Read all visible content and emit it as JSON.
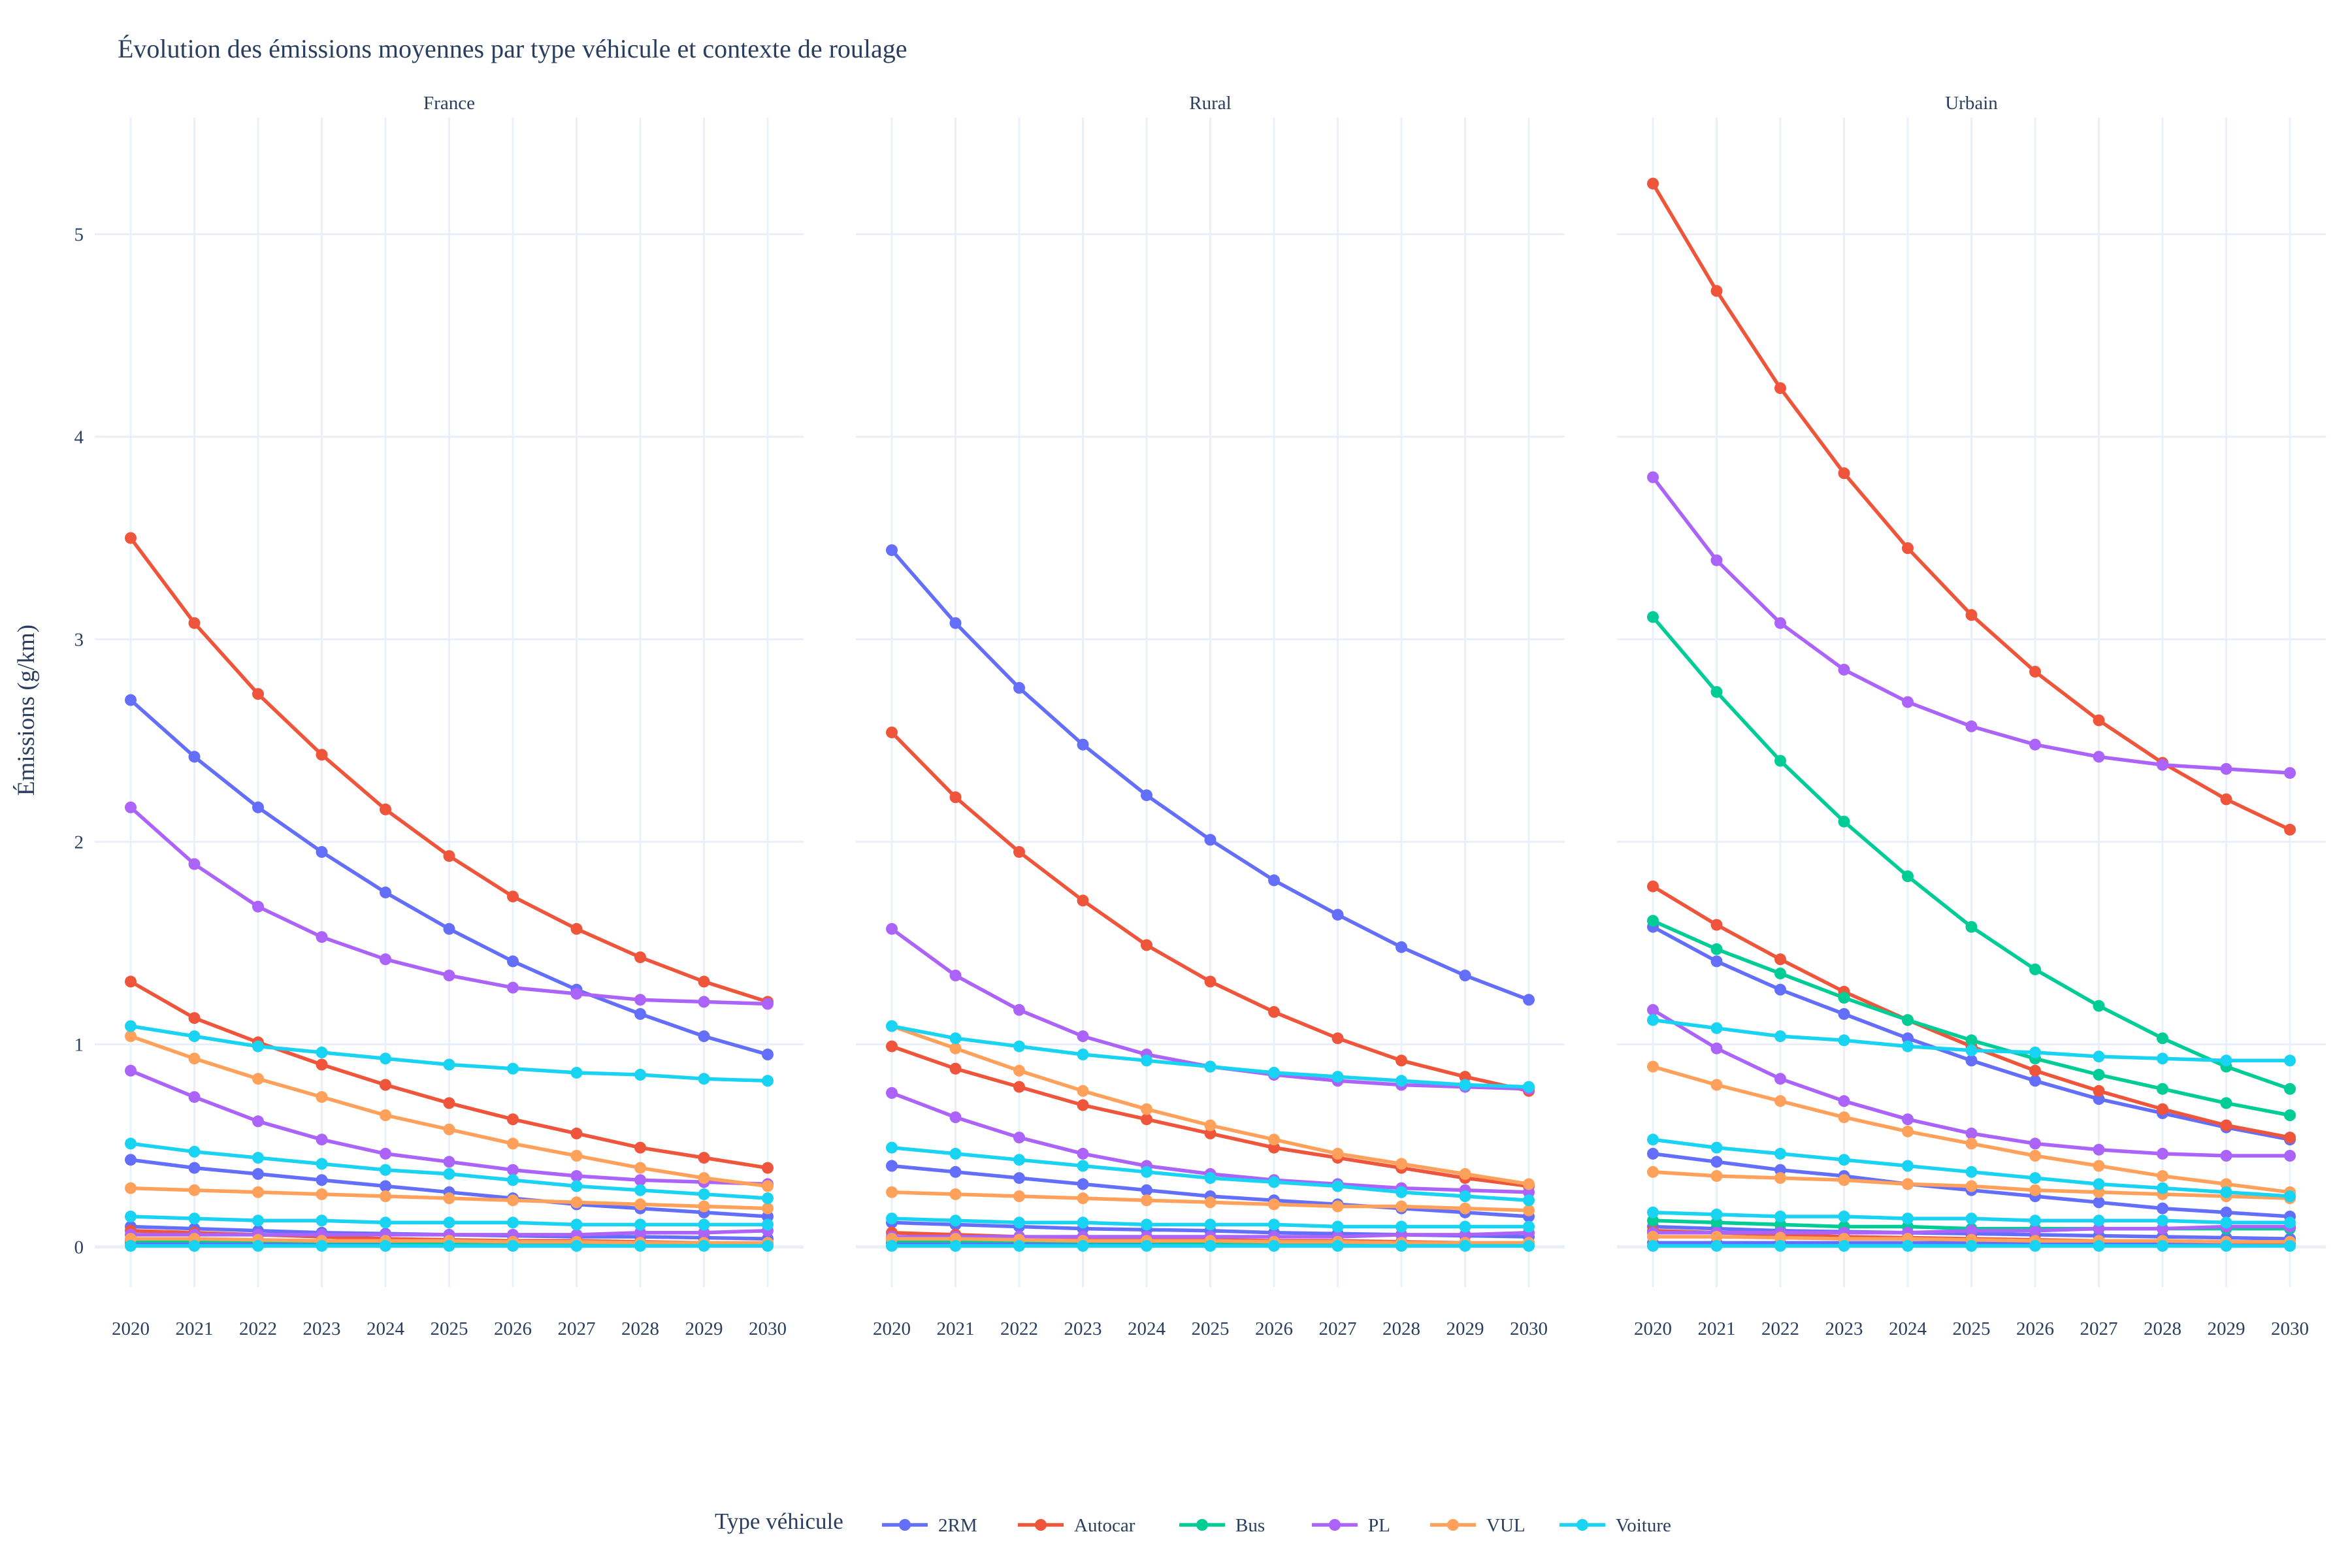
{
  "chart_data": {
    "type": "line",
    "title": "Évolution des émissions moyennes par type véhicule et contexte de roulage",
    "xlabel": "",
    "ylabel": "Émissions (g/km)",
    "ylim": [
      -0.3,
      5.6
    ],
    "yticks": [
      0,
      1,
      2,
      3,
      4,
      5
    ],
    "x": [
      "2020",
      "2021",
      "2022",
      "2023",
      "2024",
      "2025",
      "2026",
      "2027",
      "2028",
      "2029",
      "2030"
    ],
    "grid": true,
    "legend": {
      "title": "Type véhicule",
      "placement": "bottom-center"
    },
    "series_colors": {
      "2RM": "#636efa",
      "Autocar": "#ef553b",
      "Bus": "#00cc96",
      "PL": "#ab63fa",
      "VUL": "#ffa15a",
      "Voiture": "#19d3f3"
    },
    "facets": [
      {
        "name": "France",
        "series": [
          {
            "name": "2RM",
            "values": [
              2.7,
              2.42,
              2.17,
              1.95,
              1.75,
              1.57,
              1.41,
              1.27,
              1.15,
              1.04,
              0.95
            ]
          },
          {
            "name": "2RM",
            "values": [
              0.43,
              0.39,
              0.36,
              0.33,
              0.3,
              0.27,
              0.24,
              0.21,
              0.19,
              0.17,
              0.15
            ]
          },
          {
            "name": "2RM",
            "values": [
              0.1,
              0.09,
              0.08,
              0.07,
              0.065,
              0.06,
              0.055,
              0.05,
              0.05,
              0.045,
              0.04
            ]
          },
          {
            "name": "2RM",
            "values": [
              0.02,
              0.02,
              0.02,
              0.02,
              0.02,
              0.02,
              0.02,
              0.02,
              0.02,
              0.02,
              0.02
            ]
          },
          {
            "name": "Autocar",
            "values": [
              3.5,
              3.08,
              2.73,
              2.43,
              2.16,
              1.93,
              1.73,
              1.57,
              1.43,
              1.31,
              1.21
            ]
          },
          {
            "name": "Autocar",
            "values": [
              1.31,
              1.13,
              1.01,
              0.9,
              0.8,
              0.71,
              0.63,
              0.56,
              0.49,
              0.44,
              0.39
            ]
          },
          {
            "name": "Autocar",
            "values": [
              0.08,
              0.07,
              0.06,
              0.05,
              0.04,
              0.035,
              0.03,
              0.03,
              0.025,
              0.02,
              0.02
            ]
          },
          {
            "name": "Bus",
            "values": [
              0.03,
              0.03,
              0.03,
              0.025,
              0.025,
              0.02,
              0.02,
              0.02,
              0.02,
              0.02,
              0.02
            ]
          },
          {
            "name": "PL",
            "values": [
              2.17,
              1.89,
              1.68,
              1.53,
              1.42,
              1.34,
              1.28,
              1.25,
              1.22,
              1.21,
              1.2
            ]
          },
          {
            "name": "PL",
            "values": [
              0.87,
              0.74,
              0.62,
              0.53,
              0.46,
              0.42,
              0.38,
              0.35,
              0.33,
              0.32,
              0.31
            ]
          },
          {
            "name": "PL",
            "values": [
              0.06,
              0.06,
              0.06,
              0.06,
              0.06,
              0.06,
              0.06,
              0.06,
              0.07,
              0.07,
              0.08
            ]
          },
          {
            "name": "VUL",
            "values": [
              1.04,
              0.93,
              0.83,
              0.74,
              0.65,
              0.58,
              0.51,
              0.45,
              0.39,
              0.34,
              0.3
            ]
          },
          {
            "name": "VUL",
            "values": [
              0.29,
              0.28,
              0.27,
              0.26,
              0.25,
              0.24,
              0.23,
              0.22,
              0.21,
              0.2,
              0.19
            ]
          },
          {
            "name": "VUL",
            "values": [
              0.04,
              0.04,
              0.035,
              0.03,
              0.03,
              0.03,
              0.025,
              0.025,
              0.02,
              0.02,
              0.02
            ]
          },
          {
            "name": "Voiture",
            "values": [
              1.09,
              1.04,
              0.99,
              0.96,
              0.93,
              0.9,
              0.88,
              0.86,
              0.85,
              0.83,
              0.82
            ]
          },
          {
            "name": "Voiture",
            "values": [
              0.51,
              0.47,
              0.44,
              0.41,
              0.38,
              0.36,
              0.33,
              0.3,
              0.28,
              0.26,
              0.24
            ]
          },
          {
            "name": "Voiture",
            "values": [
              0.15,
              0.14,
              0.13,
              0.13,
              0.12,
              0.12,
              0.12,
              0.11,
              0.11,
              0.11,
              0.11
            ]
          },
          {
            "name": "Voiture",
            "values": [
              0.005,
              0.005,
              0.005,
              0.005,
              0.005,
              0.005,
              0.005,
              0.005,
              0.005,
              0.005,
              0.005
            ]
          }
        ]
      },
      {
        "name": "Rural",
        "series": [
          {
            "name": "2RM",
            "values": [
              3.44,
              3.08,
              2.76,
              2.48,
              2.23,
              2.01,
              1.81,
              1.64,
              1.48,
              1.34,
              1.22
            ]
          },
          {
            "name": "2RM",
            "values": [
              0.4,
              0.37,
              0.34,
              0.31,
              0.28,
              0.25,
              0.23,
              0.21,
              0.19,
              0.17,
              0.15
            ]
          },
          {
            "name": "2RM",
            "values": [
              0.12,
              0.11,
              0.1,
              0.09,
              0.085,
              0.08,
              0.07,
              0.065,
              0.06,
              0.055,
              0.05
            ]
          },
          {
            "name": "2RM",
            "values": [
              0.02,
              0.02,
              0.02,
              0.02,
              0.02,
              0.02,
              0.02,
              0.02,
              0.02,
              0.02,
              0.02
            ]
          },
          {
            "name": "Autocar",
            "values": [
              2.54,
              2.22,
              1.95,
              1.71,
              1.49,
              1.31,
              1.16,
              1.03,
              0.92,
              0.84,
              0.77
            ]
          },
          {
            "name": "Autocar",
            "values": [
              0.99,
              0.88,
              0.79,
              0.7,
              0.63,
              0.56,
              0.49,
              0.44,
              0.39,
              0.34,
              0.3
            ]
          },
          {
            "name": "Autocar",
            "values": [
              0.07,
              0.06,
              0.05,
              0.045,
              0.04,
              0.035,
              0.03,
              0.03,
              0.025,
              0.02,
              0.02
            ]
          },
          {
            "name": "Bus",
            "values": [
              0.03,
              0.03,
              0.03,
              0.025,
              0.025,
              0.02,
              0.02,
              0.02,
              0.02,
              0.02,
              0.02
            ]
          },
          {
            "name": "PL",
            "values": [
              1.57,
              1.34,
              1.17,
              1.04,
              0.95,
              0.89,
              0.85,
              0.82,
              0.8,
              0.79,
              0.78
            ]
          },
          {
            "name": "PL",
            "values": [
              0.76,
              0.64,
              0.54,
              0.46,
              0.4,
              0.36,
              0.33,
              0.31,
              0.29,
              0.28,
              0.27
            ]
          },
          {
            "name": "PL",
            "values": [
              0.05,
              0.05,
              0.05,
              0.05,
              0.05,
              0.05,
              0.05,
              0.05,
              0.06,
              0.06,
              0.07
            ]
          },
          {
            "name": "VUL",
            "values": [
              1.09,
              0.98,
              0.87,
              0.77,
              0.68,
              0.6,
              0.53,
              0.46,
              0.41,
              0.36,
              0.31
            ]
          },
          {
            "name": "VUL",
            "values": [
              0.27,
              0.26,
              0.25,
              0.24,
              0.23,
              0.22,
              0.21,
              0.2,
              0.2,
              0.19,
              0.18
            ]
          },
          {
            "name": "VUL",
            "values": [
              0.04,
              0.04,
              0.035,
              0.03,
              0.03,
              0.03,
              0.025,
              0.025,
              0.02,
              0.02,
              0.02
            ]
          },
          {
            "name": "Voiture",
            "values": [
              1.09,
              1.03,
              0.99,
              0.95,
              0.92,
              0.89,
              0.86,
              0.84,
              0.82,
              0.8,
              0.79
            ]
          },
          {
            "name": "Voiture",
            "values": [
              0.49,
              0.46,
              0.43,
              0.4,
              0.37,
              0.34,
              0.32,
              0.3,
              0.27,
              0.25,
              0.23
            ]
          },
          {
            "name": "Voiture",
            "values": [
              0.14,
              0.13,
              0.12,
              0.12,
              0.11,
              0.11,
              0.11,
              0.1,
              0.1,
              0.1,
              0.1
            ]
          },
          {
            "name": "Voiture",
            "values": [
              0.005,
              0.005,
              0.005,
              0.005,
              0.005,
              0.005,
              0.005,
              0.005,
              0.005,
              0.005,
              0.005
            ]
          }
        ]
      },
      {
        "name": "Urbain",
        "series": [
          {
            "name": "2RM",
            "values": [
              1.58,
              1.41,
              1.27,
              1.15,
              1.03,
              0.92,
              0.82,
              0.73,
              0.66,
              0.59,
              0.53
            ]
          },
          {
            "name": "2RM",
            "values": [
              0.46,
              0.42,
              0.38,
              0.35,
              0.31,
              0.28,
              0.25,
              0.22,
              0.19,
              0.17,
              0.15
            ]
          },
          {
            "name": "2RM",
            "values": [
              0.1,
              0.09,
              0.08,
              0.075,
              0.07,
              0.065,
              0.06,
              0.055,
              0.05,
              0.045,
              0.04
            ]
          },
          {
            "name": "2RM",
            "values": [
              0.02,
              0.02,
              0.02,
              0.02,
              0.02,
              0.02,
              0.02,
              0.02,
              0.02,
              0.02,
              0.02
            ]
          },
          {
            "name": "Autocar",
            "values": [
              5.25,
              4.72,
              4.24,
              3.82,
              3.45,
              3.12,
              2.84,
              2.6,
              2.39,
              2.21,
              2.06
            ]
          },
          {
            "name": "Autocar",
            "values": [
              1.78,
              1.59,
              1.42,
              1.26,
              1.12,
              0.99,
              0.87,
              0.77,
              0.68,
              0.6,
              0.54
            ]
          },
          {
            "name": "Autocar",
            "values": [
              0.08,
              0.07,
              0.06,
              0.05,
              0.045,
              0.04,
              0.035,
              0.03,
              0.03,
              0.025,
              0.02
            ]
          },
          {
            "name": "Bus",
            "values": [
              3.11,
              2.74,
              2.4,
              2.1,
              1.83,
              1.58,
              1.37,
              1.19,
              1.03,
              0.89,
              0.78
            ]
          },
          {
            "name": "Bus",
            "values": [
              1.61,
              1.47,
              1.35,
              1.23,
              1.12,
              1.02,
              0.93,
              0.85,
              0.78,
              0.71,
              0.65
            ]
          },
          {
            "name": "Bus",
            "values": [
              0.13,
              0.12,
              0.11,
              0.1,
              0.1,
              0.09,
              0.09,
              0.09,
              0.09,
              0.09,
              0.09
            ]
          },
          {
            "name": "PL",
            "values": [
              3.8,
              3.39,
              3.08,
              2.85,
              2.69,
              2.57,
              2.48,
              2.42,
              2.38,
              2.36,
              2.34
            ]
          },
          {
            "name": "PL",
            "values": [
              1.17,
              0.98,
              0.83,
              0.72,
              0.63,
              0.56,
              0.51,
              0.48,
              0.46,
              0.45,
              0.45
            ]
          },
          {
            "name": "PL",
            "values": [
              0.07,
              0.07,
              0.07,
              0.07,
              0.07,
              0.08,
              0.08,
              0.09,
              0.09,
              0.1,
              0.1
            ]
          },
          {
            "name": "VUL",
            "values": [
              0.89,
              0.8,
              0.72,
              0.64,
              0.57,
              0.51,
              0.45,
              0.4,
              0.35,
              0.31,
              0.27
            ]
          },
          {
            "name": "VUL",
            "values": [
              0.37,
              0.35,
              0.34,
              0.33,
              0.31,
              0.3,
              0.28,
              0.27,
              0.26,
              0.25,
              0.24
            ]
          },
          {
            "name": "VUL",
            "values": [
              0.05,
              0.05,
              0.045,
              0.04,
              0.04,
              0.035,
              0.03,
              0.03,
              0.03,
              0.025,
              0.025
            ]
          },
          {
            "name": "Voiture",
            "values": [
              1.12,
              1.08,
              1.04,
              1.02,
              0.99,
              0.97,
              0.96,
              0.94,
              0.93,
              0.92,
              0.92
            ]
          },
          {
            "name": "Voiture",
            "values": [
              0.53,
              0.49,
              0.46,
              0.43,
              0.4,
              0.37,
              0.34,
              0.31,
              0.29,
              0.27,
              0.25
            ]
          },
          {
            "name": "Voiture",
            "values": [
              0.17,
              0.16,
              0.15,
              0.15,
              0.14,
              0.14,
              0.13,
              0.13,
              0.13,
              0.12,
              0.12
            ]
          },
          {
            "name": "Voiture",
            "values": [
              0.005,
              0.005,
              0.005,
              0.005,
              0.005,
              0.005,
              0.005,
              0.005,
              0.005,
              0.005,
              0.005
            ]
          }
        ]
      }
    ]
  }
}
